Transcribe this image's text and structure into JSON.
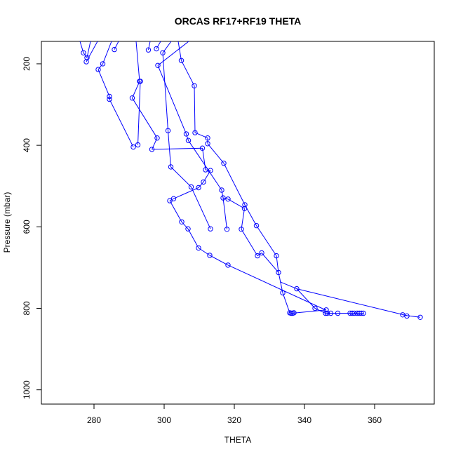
{
  "chart_data": {
    "type": "line",
    "title": "ORCAS RF17+RF19 THETA",
    "xlabel": "THETA",
    "ylabel": "Pressure (mbar)",
    "xlim": [
      265,
      377
    ],
    "ylim": [
      1035,
      145
    ],
    "y_reversed": true,
    "x_ticks": [
      280,
      300,
      320,
      340,
      360
    ],
    "y_ticks": [
      200,
      400,
      600,
      800,
      1000
    ],
    "line_color": "#0000ff",
    "marker": "open-circle",
    "grid": false,
    "series": [
      {
        "x": [
          276,
          277.0
        ],
        "y": [
          145,
          173
        ]
      },
      {
        "x": [
          279,
          278.0
        ],
        "y": [
          145,
          185
        ]
      },
      {
        "x": [
          277.0,
          278.0
        ],
        "y": [
          173,
          185
        ]
      },
      {
        "x": [
          281,
          277.8
        ],
        "y": [
          145,
          195
        ]
      },
      {
        "x": [
          285,
          282.5
        ],
        "y": [
          145,
          200
        ]
      },
      {
        "x": [
          287,
          285.8
        ],
        "y": [
          145,
          165
        ]
      },
      {
        "x": [
          282.5,
          281.2
        ],
        "y": [
          200,
          214
        ]
      },
      {
        "x": [
          292,
          293.0
        ],
        "y": [
          145,
          243
        ]
      },
      {
        "x": [
          296,
          295.5
        ],
        "y": [
          145,
          166
        ]
      },
      {
        "x": [
          299,
          297.8
        ],
        "y": [
          145,
          163
        ]
      },
      {
        "x": [
          302,
          299.6
        ],
        "y": [
          145,
          173
        ]
      },
      {
        "x": [
          307,
          298.2
        ],
        "y": [
          145,
          204
        ]
      },
      {
        "x": [
          304,
          304.9
        ],
        "y": [
          145,
          192
        ]
      },
      {
        "x": [
          304.9,
          308.6
        ],
        "y": [
          192,
          254
        ]
      },
      {
        "x": [
          281.2,
          284.4,
          284.4
        ],
        "y": [
          214,
          280,
          287
        ]
      },
      {
        "x": [
          293.0,
          290.9
        ],
        "y": [
          243,
          284
        ]
      },
      {
        "x": [
          284.4,
          291.2
        ],
        "y": [
          287,
          404
        ]
      },
      {
        "x": [
          293.2,
          292.5
        ],
        "y": [
          243,
          399
        ]
      },
      {
        "x": [
          308.6,
          308.8
        ],
        "y": [
          254,
          369
        ]
      },
      {
        "x": [
          298.2,
          306.3
        ],
        "y": [
          204,
          372
        ]
      },
      {
        "x": [
          299.6,
          301.1
        ],
        "y": [
          173,
          364
        ]
      },
      {
        "x": [
          290.9,
          298.0
        ],
        "y": [
          284,
          382
        ]
      },
      {
        "x": [
          306.3,
          306.9
        ],
        "y": [
          372,
          388
        ]
      },
      {
        "x": [
          308.8,
          312.4
        ],
        "y": [
          369,
          382
        ]
      },
      {
        "x": [
          312.4,
          312.4
        ],
        "y": [
          382,
          396
        ]
      },
      {
        "x": [
          296.5,
          310.9
        ],
        "y": [
          410,
          407
        ]
      },
      {
        "x": [
          298.0,
          296.5
        ],
        "y": [
          382,
          410
        ]
      },
      {
        "x": [
          312.4,
          317.0
        ],
        "y": [
          396,
          444
        ]
      },
      {
        "x": [
          310.9,
          311.8,
          313.2
        ],
        "y": [
          407,
          460,
          462
        ]
      },
      {
        "x": [
          301.1,
          301.9
        ],
        "y": [
          364,
          453
        ]
      },
      {
        "x": [
          317.0,
          323.0
        ],
        "y": [
          444,
          546
        ]
      },
      {
        "x": [
          313.2,
          311.2
        ],
        "y": [
          462,
          490
        ]
      },
      {
        "x": [
          301.9,
          307.7
        ],
        "y": [
          453,
          502
        ]
      },
      {
        "x": [
          311.2,
          309.8
        ],
        "y": [
          490,
          504
        ]
      },
      {
        "x": [
          306.9,
          316.4
        ],
        "y": [
          388,
          510
        ]
      },
      {
        "x": [
          316.4,
          316.8,
          318.2
        ],
        "y": [
          510,
          529,
          532
        ]
      },
      {
        "x": [
          309.8,
          302.7,
          301.6
        ],
        "y": [
          504,
          531,
          536
        ]
      },
      {
        "x": [
          318.2,
          322.9
        ],
        "y": [
          532,
          555
        ]
      },
      {
        "x": [
          323.0,
          326.3
        ],
        "y": [
          546,
          597
        ]
      },
      {
        "x": [
          301.6,
          305.0
        ],
        "y": [
          536,
          588
        ]
      },
      {
        "x": [
          305.0,
          306.8
        ],
        "y": [
          588,
          605
        ]
      },
      {
        "x": [
          307.7,
          313.2
        ],
        "y": [
          502,
          605
        ]
      },
      {
        "x": [
          316.8,
          317.9
        ],
        "y": [
          529,
          606
        ]
      },
      {
        "x": [
          322.9,
          322.0
        ],
        "y": [
          555,
          606
        ]
      },
      {
        "x": [
          306.8,
          309.8
        ],
        "y": [
          605,
          652
        ]
      },
      {
        "x": [
          309.8,
          313.0
        ],
        "y": [
          652,
          670
        ]
      },
      {
        "x": [
          313.0,
          318.2
        ],
        "y": [
          670,
          694
        ]
      },
      {
        "x": [
          318.2,
          345.0,
          346.2
        ],
        "y": [
          694,
          800,
          804
        ]
      },
      {
        "x": [
          322.0,
          326.6
        ],
        "y": [
          606,
          671
        ]
      },
      {
        "x": [
          326.3,
          332.0
        ],
        "y": [
          597,
          671
        ]
      },
      {
        "x": [
          326.6,
          327.8
        ],
        "y": [
          671,
          664
        ]
      },
      {
        "x": [
          327.8,
          332.6
        ],
        "y": [
          664,
          712
        ]
      },
      {
        "x": [
          332.0,
          332.6
        ],
        "y": [
          671,
          712
        ]
      },
      {
        "x": [
          332.6,
          333.8
        ],
        "y": [
          712,
          762
        ]
      },
      {
        "x": [
          333.8,
          335.8,
          336.5
        ],
        "y": [
          762,
          811,
          812
        ]
      },
      {
        "x": [
          336.5,
          346.2
        ],
        "y": [
          812,
          804
        ]
      },
      {
        "x": [
          333.0,
          337.8
        ],
        "y": [
          735,
          752
        ]
      },
      {
        "x": [
          337.8,
          369.2
        ],
        "y": [
          752,
          818
        ]
      },
      {
        "x": [
          369.2,
          373.0
        ],
        "y": [
          818,
          822
        ]
      },
      {
        "x": [
          337.8,
          343.0
        ],
        "y": [
          752,
          800
        ]
      },
      {
        "x": [
          343.0,
          346.0
        ],
        "y": [
          800,
          812
        ]
      },
      {
        "x": [
          346.0,
          356.8
        ],
        "y": [
          812,
          812
        ]
      },
      {
        "x": [
          368.0,
          369.2
        ],
        "y": [
          816,
          818
        ]
      }
    ],
    "points": [
      {
        "x": 277.0,
        "y": 173
      },
      {
        "x": 278.0,
        "y": 185
      },
      {
        "x": 277.8,
        "y": 195
      },
      {
        "x": 285.8,
        "y": 165
      },
      {
        "x": 282.5,
        "y": 200
      },
      {
        "x": 281.2,
        "y": 214
      },
      {
        "x": 295.5,
        "y": 166
      },
      {
        "x": 297.8,
        "y": 163
      },
      {
        "x": 299.6,
        "y": 173
      },
      {
        "x": 298.2,
        "y": 204
      },
      {
        "x": 304.9,
        "y": 192
      },
      {
        "x": 308.6,
        "y": 254
      },
      {
        "x": 293.0,
        "y": 243
      },
      {
        "x": 293.2,
        "y": 243
      },
      {
        "x": 284.4,
        "y": 280
      },
      {
        "x": 284.4,
        "y": 287
      },
      {
        "x": 290.9,
        "y": 284
      },
      {
        "x": 291.2,
        "y": 404
      },
      {
        "x": 292.5,
        "y": 399
      },
      {
        "x": 296.5,
        "y": 410
      },
      {
        "x": 298.0,
        "y": 382
      },
      {
        "x": 301.1,
        "y": 364
      },
      {
        "x": 306.3,
        "y": 372
      },
      {
        "x": 306.9,
        "y": 388
      },
      {
        "x": 308.8,
        "y": 369
      },
      {
        "x": 312.4,
        "y": 382
      },
      {
        "x": 312.4,
        "y": 396
      },
      {
        "x": 310.9,
        "y": 407
      },
      {
        "x": 317.0,
        "y": 444
      },
      {
        "x": 311.8,
        "y": 460
      },
      {
        "x": 313.2,
        "y": 462
      },
      {
        "x": 301.9,
        "y": 453
      },
      {
        "x": 311.2,
        "y": 490
      },
      {
        "x": 309.8,
        "y": 504
      },
      {
        "x": 307.7,
        "y": 502
      },
      {
        "x": 316.4,
        "y": 510
      },
      {
        "x": 316.8,
        "y": 529
      },
      {
        "x": 318.2,
        "y": 532
      },
      {
        "x": 302.7,
        "y": 531
      },
      {
        "x": 301.6,
        "y": 536
      },
      {
        "x": 323.0,
        "y": 546
      },
      {
        "x": 322.9,
        "y": 555
      },
      {
        "x": 305.0,
        "y": 588
      },
      {
        "x": 326.3,
        "y": 597
      },
      {
        "x": 306.8,
        "y": 605
      },
      {
        "x": 313.2,
        "y": 605
      },
      {
        "x": 317.9,
        "y": 606
      },
      {
        "x": 322.0,
        "y": 606
      },
      {
        "x": 309.8,
        "y": 652
      },
      {
        "x": 313.0,
        "y": 670
      },
      {
        "x": 318.2,
        "y": 694
      },
      {
        "x": 326.6,
        "y": 671
      },
      {
        "x": 327.8,
        "y": 664
      },
      {
        "x": 332.0,
        "y": 671
      },
      {
        "x": 332.6,
        "y": 712
      },
      {
        "x": 333.8,
        "y": 762
      },
      {
        "x": 337.8,
        "y": 752
      },
      {
        "x": 343.0,
        "y": 800
      },
      {
        "x": 346.2,
        "y": 804
      },
      {
        "x": 335.8,
        "y": 811
      },
      {
        "x": 336.2,
        "y": 812
      },
      {
        "x": 336.6,
        "y": 812
      },
      {
        "x": 337.0,
        "y": 811
      },
      {
        "x": 346.0,
        "y": 812
      },
      {
        "x": 346.5,
        "y": 812
      },
      {
        "x": 347.5,
        "y": 812
      },
      {
        "x": 349.5,
        "y": 812
      },
      {
        "x": 353.0,
        "y": 812
      },
      {
        "x": 353.6,
        "y": 812
      },
      {
        "x": 354.2,
        "y": 812
      },
      {
        "x": 355.0,
        "y": 812
      },
      {
        "x": 355.6,
        "y": 812
      },
      {
        "x": 356.2,
        "y": 812
      },
      {
        "x": 356.8,
        "y": 812
      },
      {
        "x": 368.0,
        "y": 816
      },
      {
        "x": 369.2,
        "y": 819
      },
      {
        "x": 373.0,
        "y": 822
      }
    ]
  }
}
